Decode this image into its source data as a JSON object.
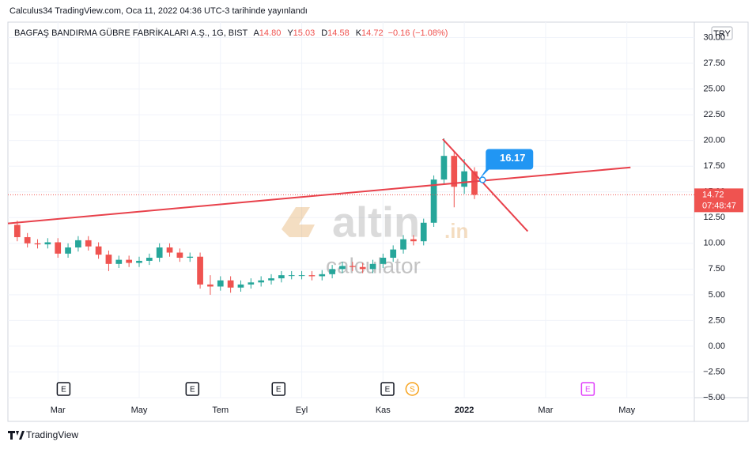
{
  "header": {
    "published": "Calculus34 TradingView.com, Oca 11, 2022 04:36 UTC-3 tarihinde yayınlandı"
  },
  "footer": "TradingView",
  "chart_data": {
    "type": "candlestick",
    "title": "BAGFAŞ BANDIRMA GÜBRE FABRİKALARI A.Ş., 1G, BIST",
    "ohlc_legend": [
      {
        "label": "A",
        "value": "14.80"
      },
      {
        "label": "Y",
        "value": "15.03"
      },
      {
        "label": "D",
        "value": "14.58"
      },
      {
        "label": "K",
        "value": "14.72"
      }
    ],
    "change": "−0.16 (−1.08%)",
    "x": [
      1.0,
      1.25,
      1.5,
      1.75,
      2.0,
      2.25,
      2.5,
      2.75,
      3.0,
      3.25,
      3.5,
      3.75,
      4.0,
      4.25,
      4.5,
      4.75,
      5.0,
      5.25,
      5.5,
      5.75,
      6.0,
      6.25,
      6.5,
      6.75,
      7.0,
      7.25,
      7.5,
      7.75,
      8.0,
      8.25,
      8.5,
      8.75,
      9.0,
      9.25,
      9.5,
      9.75,
      10.0,
      10.25,
      10.5,
      10.75,
      11.0,
      11.25,
      11.5,
      11.75,
      12.0,
      12.25
    ],
    "open": [
      11.8,
      10.6,
      10.0,
      9.9,
      10.1,
      9.0,
      9.6,
      10.3,
      9.7,
      8.9,
      8.0,
      8.4,
      8.1,
      8.3,
      8.6,
      9.6,
      9.1,
      8.6,
      8.7,
      6.0,
      5.8,
      6.4,
      5.7,
      6.0,
      6.2,
      6.4,
      6.6,
      6.9,
      6.9,
      6.9,
      6.8,
      7.0,
      7.5,
      7.8,
      7.7,
      7.5,
      8.0,
      8.6,
      9.4,
      10.4,
      10.2,
      12.0,
      16.2,
      18.5,
      15.5,
      17.0
    ],
    "high": [
      12.2,
      11.0,
      10.4,
      10.5,
      10.5,
      10.0,
      10.7,
      10.7,
      10.1,
      9.3,
      8.8,
      8.8,
      8.7,
      9.0,
      10.0,
      10.0,
      9.5,
      9.1,
      9.1,
      6.9,
      6.8,
      6.8,
      6.4,
      6.6,
      6.8,
      7.0,
      7.3,
      7.3,
      7.3,
      7.3,
      7.4,
      7.9,
      8.2,
      8.2,
      8.1,
      8.4,
      9.0,
      9.8,
      10.8,
      10.8,
      12.4,
      16.6,
      20.2,
      18.9,
      18.2,
      17.4
    ],
    "low": [
      10.2,
      9.6,
      9.5,
      9.5,
      8.6,
      8.6,
      9.2,
      9.3,
      8.5,
      7.3,
      7.6,
      7.7,
      7.7,
      7.9,
      8.2,
      8.7,
      8.2,
      8.2,
      5.6,
      5.0,
      5.4,
      5.2,
      5.3,
      5.6,
      5.8,
      6.0,
      6.2,
      6.5,
      6.5,
      6.4,
      6.4,
      6.6,
      7.1,
      7.3,
      7.1,
      7.1,
      7.6,
      8.2,
      9.0,
      9.8,
      9.8,
      11.6,
      15.8,
      13.5,
      14.8,
      14.3
    ],
    "close": [
      10.6,
      10.0,
      9.9,
      10.1,
      9.0,
      9.6,
      10.3,
      9.7,
      8.9,
      8.0,
      8.4,
      8.1,
      8.3,
      8.6,
      9.6,
      9.1,
      8.6,
      8.7,
      6.0,
      5.8,
      6.4,
      5.7,
      6.0,
      6.2,
      6.4,
      6.6,
      6.9,
      6.9,
      6.9,
      6.8,
      7.0,
      7.5,
      7.8,
      7.7,
      7.5,
      8.0,
      8.6,
      9.4,
      10.4,
      10.2,
      12.0,
      16.2,
      18.5,
      15.5,
      17.0,
      14.72
    ],
    "up_color": "#26a69a",
    "down_color": "#ef5350",
    "xlim": [
      0.77,
      17.66
    ],
    "xticks": [
      {
        "value": 2,
        "label": "Mar"
      },
      {
        "value": 4,
        "label": "May"
      },
      {
        "value": 6,
        "label": "Tem"
      },
      {
        "value": 8,
        "label": "Eyl"
      },
      {
        "value": 10,
        "label": "Kas"
      },
      {
        "value": 12,
        "label": "2022"
      },
      {
        "value": 14,
        "label": "Mar"
      },
      {
        "value": 16,
        "label": "May"
      }
    ],
    "ylim": [
      -5,
      31.5
    ],
    "yticks": [
      {
        "value": 30,
        "label": "30.00"
      },
      {
        "value": 27.5,
        "label": "27.50"
      },
      {
        "value": 25,
        "label": "25.00"
      },
      {
        "value": 22.5,
        "label": "22.50"
      },
      {
        "value": 20,
        "label": "20.00"
      },
      {
        "value": 17.5,
        "label": "17.50"
      },
      {
        "value": 15,
        "label": "15.00"
      },
      {
        "value": 12.5,
        "label": "12.50"
      },
      {
        "value": 10,
        "label": "10.00"
      },
      {
        "value": 7.5,
        "label": "7.50"
      },
      {
        "value": 5,
        "label": "5.00"
      },
      {
        "value": 2.5,
        "label": "2.50"
      },
      {
        "value": 0,
        "label": "0.00"
      },
      {
        "value": -2.5,
        "label": "−2.50"
      },
      {
        "value": -5,
        "label": "−5.00"
      }
    ],
    "grid": true,
    "currency": "TRY",
    "last_price": {
      "value": 14.72,
      "label": "14.72"
    },
    "countdown": "07:48:47",
    "trendlines": [
      {
        "x": [
          0.77,
          16.09
        ],
        "y": [
          11.93,
          17.38
        ],
        "color": "#e8414b"
      },
      {
        "x": [
          11.47,
          13.56
        ],
        "y": [
          20.13,
          11.17
        ],
        "color": "#e8414b"
      }
    ],
    "callout": {
      "x": 12.45,
      "y": 16.17,
      "label": "16.17",
      "color": "#2196f3"
    },
    "events": [
      {
        "x": 2.14,
        "label": "E",
        "color": "#131722"
      },
      {
        "x": 5.31,
        "label": "E",
        "color": "#131722"
      },
      {
        "x": 7.43,
        "label": "E",
        "color": "#131722"
      },
      {
        "x": 10.11,
        "label": "E",
        "color": "#131722"
      },
      {
        "x": 10.72,
        "label": "S",
        "color": "#f7a21b"
      },
      {
        "x": 15.04,
        "label": "E",
        "color": "#e040fb"
      }
    ],
    "watermark": {
      "brand": "altin",
      "suffix": ".in",
      "sub": "calculator"
    }
  }
}
